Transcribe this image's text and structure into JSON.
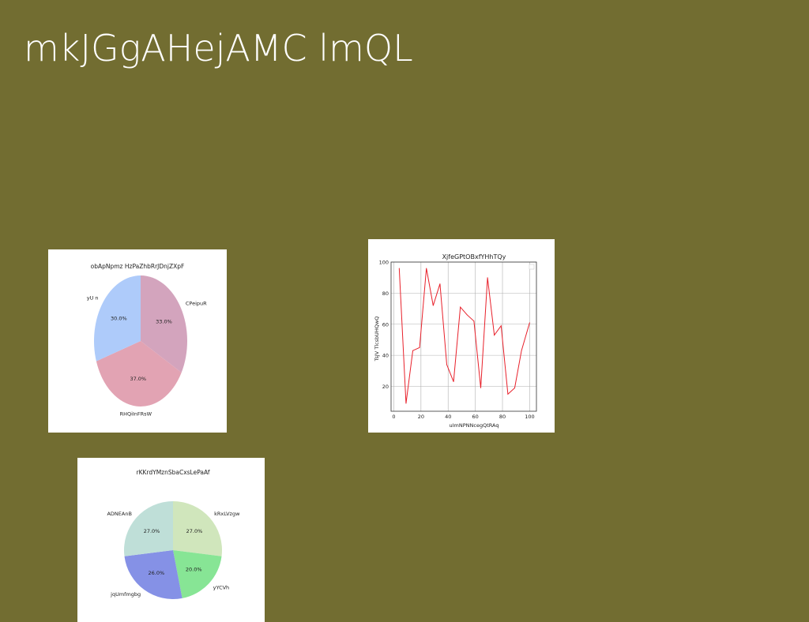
{
  "slide": {
    "title": "mkJGgAHejAMC lmQL"
  },
  "chart_data": [
    {
      "type": "pie",
      "title": "obApNpmz HzPaZhbRrJDnjZXpF",
      "slices": [
        {
          "label": "CPeipuR",
          "value": 33.0,
          "pct_label": "33.0%",
          "color": "#d3a4bd"
        },
        {
          "label": "RHQiInFRsW",
          "value": 37.0,
          "pct_label": "37.0%",
          "color": "#e2a3b3"
        },
        {
          "label": "yU n",
          "value": 30.0,
          "pct_label": "30.0%",
          "color": "#aecbfa"
        }
      ],
      "start_angle_deg": 90,
      "direction": "clockwise"
    },
    {
      "type": "line",
      "title": "XjfeGPtOBxfYHhTQy",
      "xlabel": "uImNPNNcegQtRAq",
      "ylabel": "TsJV TlcsbUHQwQ",
      "xlim": [
        -2,
        105
      ],
      "ylim": [
        4,
        100
      ],
      "xticks": [
        0,
        20,
        40,
        60,
        80,
        100
      ],
      "yticks": [
        20,
        40,
        60,
        80,
        100
      ],
      "grid": true,
      "series": [
        {
          "color": "#e8202a",
          "x": [
            4,
            9,
            14,
            19,
            24,
            29,
            34,
            39,
            44,
            49,
            54,
            59,
            64,
            69,
            74,
            79,
            84,
            89,
            94,
            100
          ],
          "y": [
            96,
            9,
            43,
            45,
            96,
            72,
            86,
            34,
            23,
            71,
            66,
            62,
            19,
            90,
            53,
            59,
            15,
            19,
            43,
            61
          ]
        }
      ]
    },
    {
      "type": "pie",
      "title": "rKKrdYMznSbaCxsLePaAf",
      "slices": [
        {
          "label": "kRxLVzgw",
          "value": 27.0,
          "pct_label": "27.0%",
          "color": "#d0e6bc"
        },
        {
          "label": "yYCVh",
          "value": 20.0,
          "pct_label": "20.0%",
          "color": "#87e595"
        },
        {
          "label": "jqUmfmgbg",
          "value": 26.0,
          "pct_label": "26.0%",
          "color": "#8591e6"
        },
        {
          "label": "ADNEAnB",
          "value": 27.0,
          "pct_label": "27.0%",
          "color": "#bfdfd8"
        }
      ],
      "start_angle_deg": 90,
      "direction": "clockwise"
    }
  ]
}
